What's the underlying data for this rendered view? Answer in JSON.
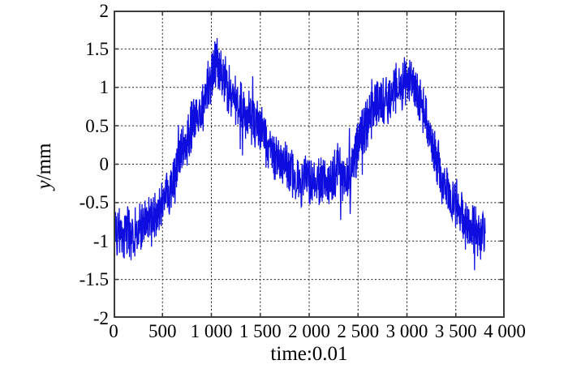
{
  "chart_data": {
    "type": "line",
    "title": "",
    "xlabel": "time:0.01",
    "ylabel": "y/mm",
    "ylabel_var": "y",
    "ylabel_unit": "/mm",
    "xlim": [
      0,
      4000
    ],
    "ylim": [
      -2,
      2
    ],
    "x_tick_values": [
      0,
      500,
      1000,
      1500,
      2000,
      2500,
      3000,
      3500,
      4000
    ],
    "x_tick_labels": [
      "0",
      "500",
      "1 000",
      "1 500",
      "2 000",
      "2 500",
      "3 000",
      "3 500",
      "4 000"
    ],
    "y_tick_values": [
      2,
      1.5,
      1,
      0.5,
      0,
      -0.5,
      -1,
      -1.5,
      -2
    ],
    "y_tick_labels": [
      "2",
      "1.5",
      "1",
      "0.5",
      "0",
      "-0.5",
      "-1",
      "-1.5",
      "-2"
    ],
    "grid": {
      "show": true,
      "style": "dashed",
      "color": "#1a1a1a"
    },
    "axes_box_color": "#3c3c3c",
    "background": "#ffffff",
    "legend": false,
    "series": [
      {
        "name": "y",
        "color": "#0d0ddf",
        "line_width": 1.3,
        "noise_amplitude": 0.3,
        "x_end": 3800,
        "x_trend": [
          0,
          50,
          100,
          150,
          200,
          250,
          300,
          350,
          400,
          450,
          500,
          550,
          600,
          650,
          700,
          750,
          800,
          850,
          900,
          950,
          1000,
          1050,
          1100,
          1150,
          1200,
          1250,
          1300,
          1350,
          1400,
          1450,
          1500,
          1550,
          1600,
          1650,
          1700,
          1750,
          1800,
          1850,
          1900,
          1950,
          2000,
          2050,
          2100,
          2150,
          2200,
          2250,
          2300,
          2350,
          2400,
          2450,
          2500,
          2550,
          2600,
          2650,
          2700,
          2750,
          2800,
          2850,
          2900,
          2950,
          3000,
          3050,
          3100,
          3150,
          3200,
          3250,
          3300,
          3350,
          3400,
          3450,
          3500,
          3550,
          3600,
          3650,
          3700,
          3750,
          3800
        ],
        "y_trend": [
          -0.75,
          -0.9,
          -0.92,
          -0.95,
          -1.0,
          -0.95,
          -0.9,
          -0.93,
          -0.85,
          -0.7,
          -0.55,
          -0.4,
          -0.25,
          -0.1,
          0.1,
          0.3,
          0.5,
          0.6,
          0.72,
          0.92,
          1.15,
          1.4,
          1.22,
          1.1,
          1.05,
          0.95,
          0.85,
          0.72,
          0.62,
          0.58,
          0.48,
          0.42,
          0.32,
          0.22,
          0.12,
          0.02,
          -0.12,
          -0.18,
          -0.25,
          -0.3,
          -0.3,
          -0.35,
          -0.4,
          -0.4,
          -0.35,
          -0.22,
          -0.1,
          -0.15,
          -0.2,
          -0.05,
          0.2,
          0.38,
          0.5,
          0.6,
          0.75,
          0.85,
          0.88,
          0.95,
          1.0,
          1.05,
          1.1,
          1.02,
          0.9,
          0.72,
          0.5,
          0.3,
          0.1,
          -0.05,
          -0.25,
          -0.35,
          -0.32,
          -0.42,
          -0.52,
          -0.6,
          -0.65,
          -0.7,
          -0.62
        ],
        "y_peak": 1.85,
        "y_min": -1.32
      }
    ]
  }
}
